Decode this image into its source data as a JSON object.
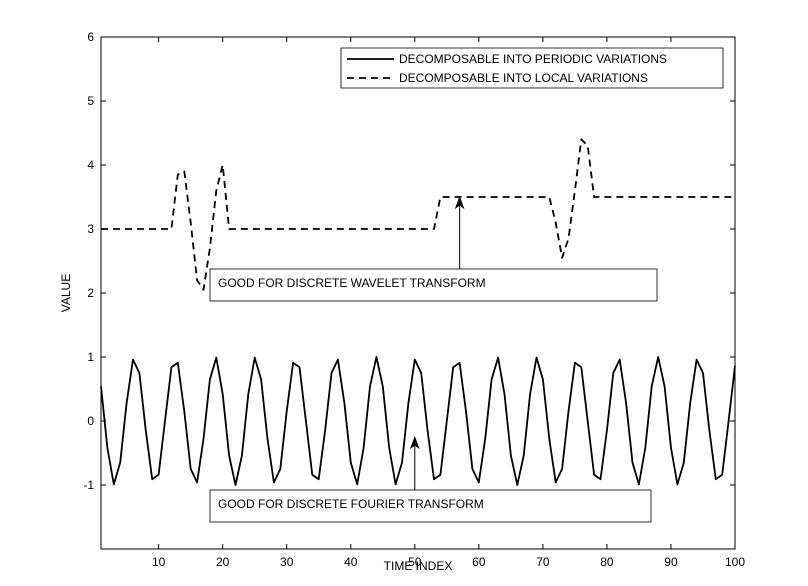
{
  "chart_data": {
    "type": "line",
    "title": "",
    "xlabel": "TIME INDEX",
    "ylabel": "VALUE",
    "xlim": [
      1,
      100
    ],
    "ylim": [
      -2,
      6
    ],
    "xticks": [
      10,
      20,
      30,
      40,
      50,
      60,
      70,
      80,
      90,
      100
    ],
    "yticks": [
      -1,
      0,
      1,
      2,
      3,
      4,
      5,
      6
    ],
    "grid": false,
    "legend_position": "top-right",
    "series": [
      {
        "name": "DECOMPOSABLE INTO PERIODIC VARIATIONS",
        "style": "solid",
        "x": [
          1,
          2,
          3,
          4,
          5,
          6,
          7,
          8,
          9,
          10,
          11,
          12,
          13,
          14,
          15,
          16,
          17,
          18,
          19,
          20,
          21,
          22,
          23,
          24,
          25,
          26,
          27,
          28,
          29,
          30,
          31,
          32,
          33,
          34,
          35,
          36,
          37,
          38,
          39,
          40,
          41,
          42,
          43,
          44,
          45,
          46,
          47,
          48,
          49,
          50,
          51,
          52,
          53,
          54,
          55,
          56,
          57,
          58,
          59,
          60,
          61,
          62,
          63,
          64,
          65,
          66,
          67,
          68,
          69,
          70,
          71,
          72,
          73,
          74,
          75,
          76,
          77,
          78,
          79,
          80,
          81,
          82,
          83,
          84,
          85,
          86,
          87,
          88,
          89,
          90,
          91,
          92,
          93,
          94,
          95,
          96,
          97,
          98,
          99,
          100
        ],
        "y": [
          0.54,
          -0.42,
          -0.99,
          -0.65,
          0.28,
          0.96,
          0.75,
          -0.15,
          -0.91,
          -0.84,
          0.0,
          0.84,
          0.91,
          0.15,
          -0.75,
          -0.96,
          -0.28,
          0.65,
          0.99,
          0.42,
          -0.54,
          -1.0,
          -0.54,
          0.42,
          0.99,
          0.65,
          -0.28,
          -0.96,
          -0.75,
          0.15,
          0.91,
          0.84,
          0.0,
          -0.84,
          -0.91,
          -0.15,
          0.75,
          0.96,
          0.28,
          -0.65,
          -0.99,
          -0.42,
          0.54,
          1.0,
          0.54,
          -0.42,
          -0.99,
          -0.65,
          0.28,
          0.96,
          0.75,
          -0.15,
          -0.91,
          -0.84,
          0.0,
          0.84,
          0.91,
          0.15,
          -0.75,
          -0.96,
          -0.28,
          0.65,
          0.99,
          0.42,
          -0.54,
          -1.0,
          -0.54,
          0.42,
          0.99,
          0.65,
          -0.28,
          -0.96,
          -0.75,
          0.15,
          0.91,
          0.84,
          0.0,
          -0.84,
          -0.91,
          -0.15,
          0.75,
          0.96,
          0.28,
          -0.65,
          -0.99,
          -0.42,
          0.54,
          1.0,
          0.54,
          -0.42,
          -0.99,
          -0.65,
          0.28,
          0.96,
          0.75,
          -0.15,
          -0.91,
          -0.84,
          0.0,
          0.86
        ]
      },
      {
        "name": "DECOMPOSABLE INTO LOCAL VARIATIONS",
        "style": "dashed",
        "x": [
          1,
          2,
          3,
          4,
          5,
          6,
          7,
          8,
          9,
          10,
          11,
          12,
          13,
          14,
          15,
          16,
          17,
          18,
          19,
          20,
          21,
          22,
          23,
          24,
          25,
          26,
          27,
          28,
          29,
          30,
          31,
          32,
          33,
          34,
          35,
          36,
          37,
          38,
          39,
          40,
          41,
          42,
          43,
          44,
          45,
          46,
          47,
          48,
          49,
          50,
          51,
          52,
          53,
          54,
          55,
          56,
          57,
          58,
          59,
          60,
          61,
          62,
          63,
          64,
          65,
          66,
          67,
          68,
          69,
          70,
          71,
          72,
          73,
          74,
          75,
          76,
          77,
          78,
          79,
          80,
          81,
          82,
          83,
          84,
          85,
          86,
          87,
          88,
          89,
          90,
          91,
          92,
          93,
          94,
          95,
          96,
          97,
          98,
          99,
          100
        ],
        "y": [
          3,
          3,
          3,
          3,
          3,
          3,
          3,
          3,
          3,
          3,
          3,
          3,
          3.85,
          3.9,
          3.1,
          2.2,
          2.05,
          2.7,
          3.6,
          4.0,
          3,
          3,
          3,
          3,
          3,
          3,
          3,
          3,
          3,
          3,
          3,
          3,
          3,
          3,
          3,
          3,
          3,
          3,
          3,
          3,
          3,
          3,
          3,
          3,
          3,
          3,
          3,
          3,
          3,
          3,
          3,
          3,
          3,
          3.5,
          3.5,
          3.5,
          3.5,
          3.5,
          3.5,
          3.5,
          3.5,
          3.5,
          3.5,
          3.5,
          3.5,
          3.5,
          3.5,
          3.5,
          3.5,
          3.5,
          3.5,
          3.1,
          2.55,
          2.85,
          3.6,
          4.4,
          4.3,
          3.5,
          3.5,
          3.5,
          3.5,
          3.5,
          3.5,
          3.5,
          3.5,
          3.5,
          3.5,
          3.5,
          3.5,
          3.5,
          3.5,
          3.5,
          3.5,
          3.5,
          3.5,
          3.5,
          3.5,
          3.5,
          3.5,
          3.5
        ]
      }
    ],
    "annotations": [
      {
        "text": "GOOD FOR DISCRETE WAVELET TRANSFORM",
        "arrow_to": {
          "x": 57,
          "y": 3.5
        },
        "arrow_from": {
          "x": 57,
          "y": 2.2
        }
      },
      {
        "text": "GOOD FOR DISCRETE FOURIER TRANSFORM",
        "arrow_to": {
          "x": 50,
          "y": -0.25
        },
        "arrow_from": {
          "x": 50,
          "y": -1.1
        }
      }
    ]
  }
}
